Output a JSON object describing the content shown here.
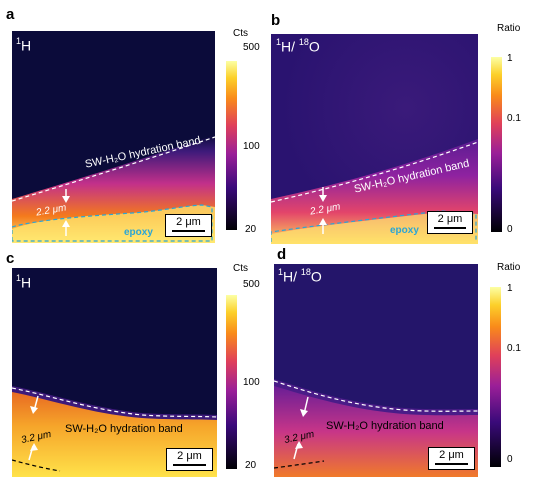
{
  "panels": {
    "a": {
      "letter": "a",
      "iso_main": "H",
      "iso_sup": "1",
      "scale": "2 μm",
      "band": "SW-H₂O hydration band",
      "width": "2.2 μm",
      "epoxy": "epoxy"
    },
    "b": {
      "letter": "b",
      "iso_sup1": "1",
      "iso_h": "H/",
      "iso_sup2": "18",
      "iso_o": "O",
      "scale": "2 μm",
      "band": "SW-H₂O hydration band",
      "width": "2.2 μm",
      "epoxy": "epoxy"
    },
    "c": {
      "letter": "c",
      "iso_main": "H",
      "iso_sup": "1",
      "scale": "2 μm",
      "band": "SW-H₂O hydration band",
      "width": "3.2 μm"
    },
    "d": {
      "letter": "d",
      "iso_sup1": "1",
      "iso_h": "H/",
      "iso_sup2": "18",
      "iso_o": "O",
      "scale": "2 μm",
      "band": "SW-H₂O hydration band",
      "width": "3.2 μm"
    }
  },
  "colorbars": {
    "a": {
      "title": "Cts",
      "top": "500",
      "mid": "100",
      "bottom": "20"
    },
    "b": {
      "title": "Ratio",
      "top": "1",
      "mid": "0.1",
      "bottom": "0"
    },
    "c": {
      "title": "Cts",
      "top": "500",
      "mid": "100",
      "bottom": "20"
    },
    "d": {
      "title": "Ratio",
      "top": "1",
      "mid": "0.1",
      "bottom": "0"
    }
  },
  "colors": {
    "background_dark": "#0b0b3a",
    "band_purple": "#7a1fa0",
    "band_orange": "#f07a1a",
    "band_yellow": "#ffe870",
    "epoxy_outline": "#2aa6d6"
  }
}
